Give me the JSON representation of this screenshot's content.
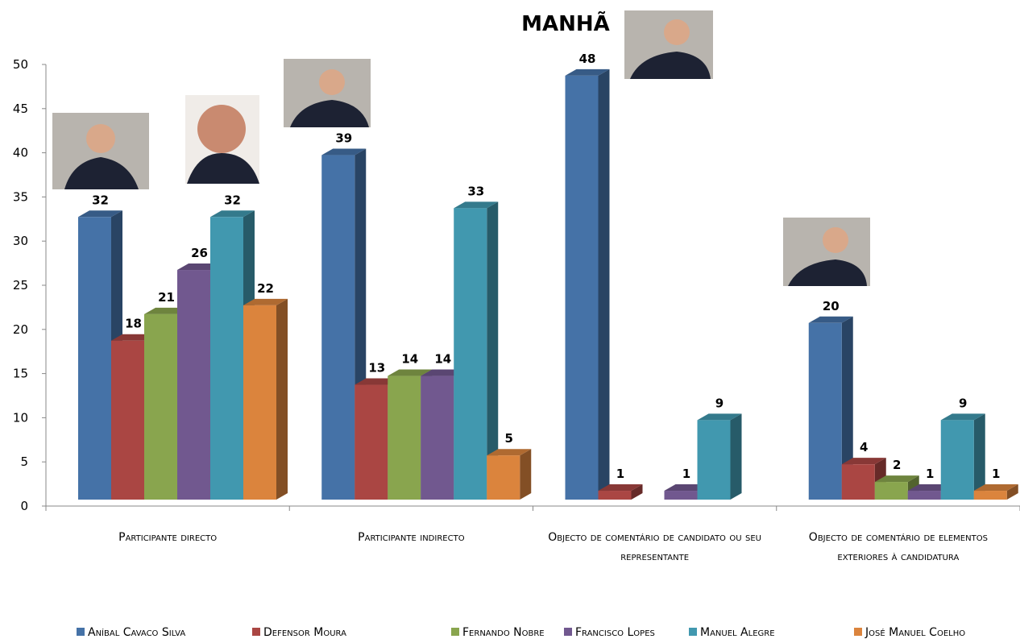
{
  "chart_data": {
    "type": "bar3d",
    "title": "MANHÃ",
    "categories": [
      "Participante directo",
      "Participante indirecto",
      "Objecto de comentário de candidato ou seu representante",
      "Objecto de comentário de elementos exteriores à candidatura"
    ],
    "series": [
      {
        "name": "Aníbal Cavaco Silva",
        "color": "#4572a7",
        "values": [
          32,
          39,
          48,
          20
        ]
      },
      {
        "name": "Defensor Moura",
        "color": "#aa4643",
        "values": [
          18,
          13,
          1,
          4
        ]
      },
      {
        "name": "Fernando Nobre",
        "color": "#89a54e",
        "values": [
          21,
          14,
          null,
          2
        ]
      },
      {
        "name": "Francisco Lopes",
        "color": "#71588f",
        "values": [
          26,
          14,
          1,
          1
        ]
      },
      {
        "name": "Manuel Alegre",
        "color": "#4198af",
        "values": [
          32,
          33,
          9,
          9
        ]
      },
      {
        "name": "José Manuel Coelho",
        "color": "#db843d",
        "values": [
          22,
          5,
          null,
          1
        ]
      }
    ],
    "ylim": [
      0,
      50
    ],
    "yticks": [
      0,
      5,
      10,
      15,
      20,
      25,
      30,
      35,
      40,
      45,
      50
    ],
    "grid": false,
    "legend": "bottom"
  }
}
